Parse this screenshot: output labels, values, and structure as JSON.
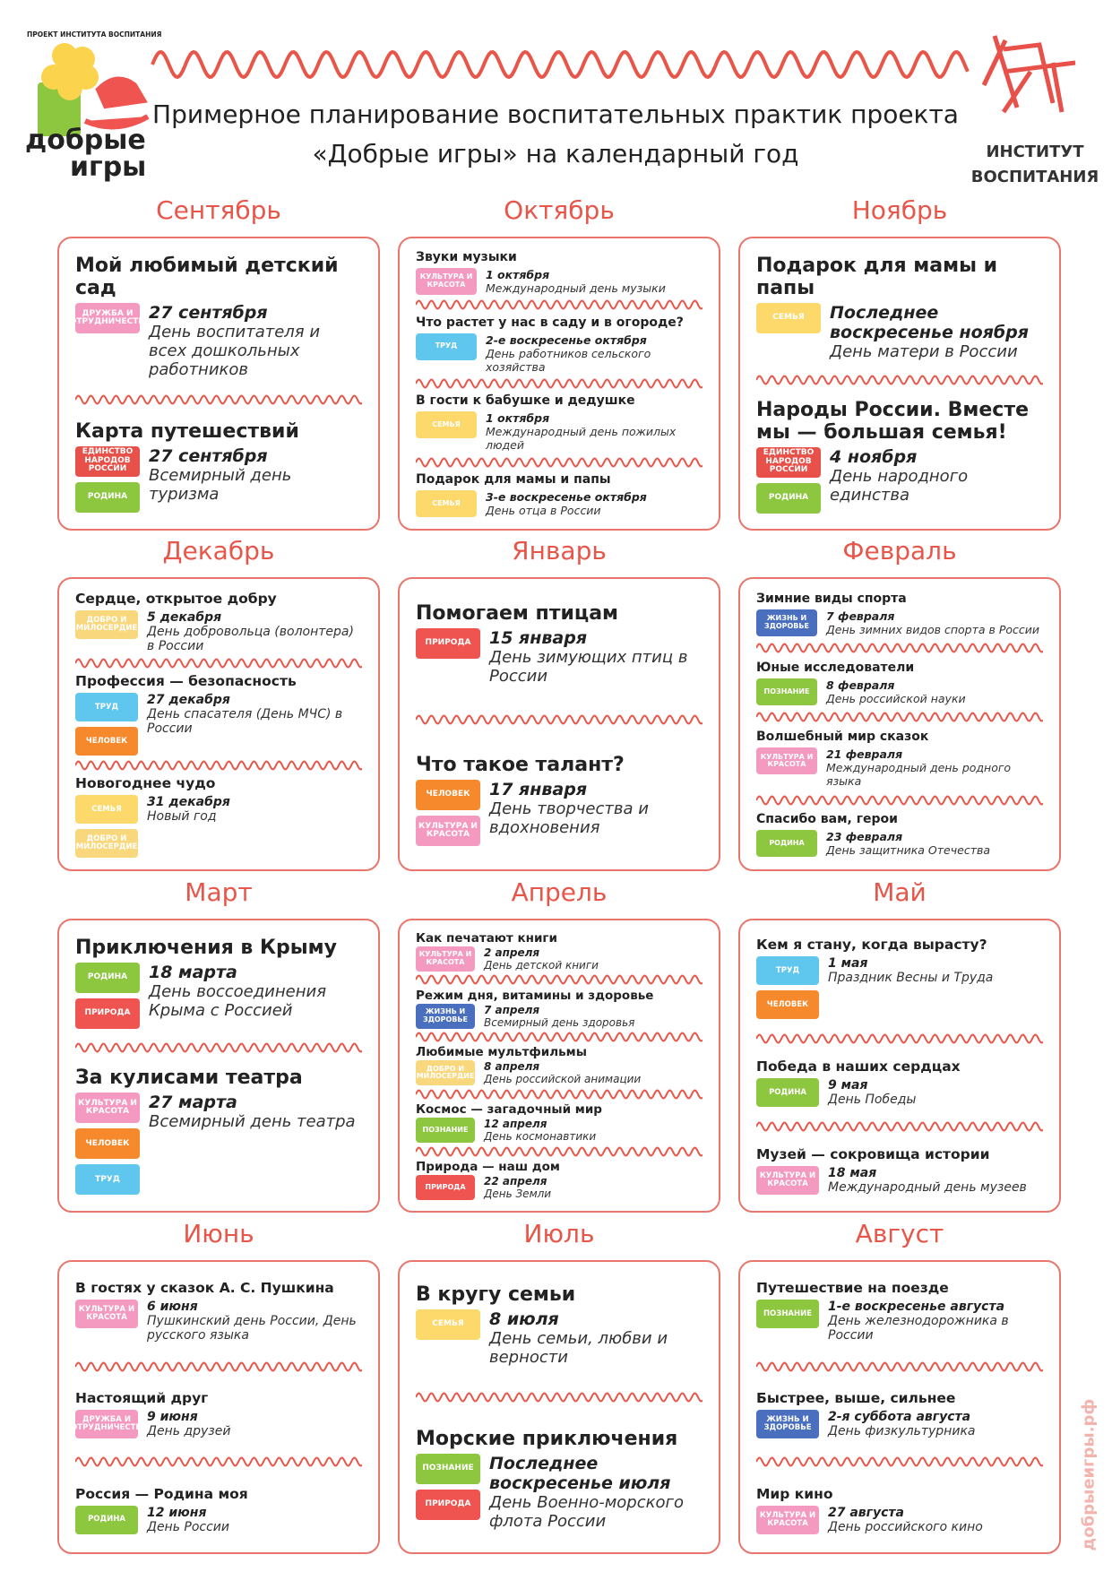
{
  "header": {
    "project": "ПРОЕКТ ИНСТИТУТА ВОСПИТАНИЯ",
    "logo_line1": "добрые",
    "logo_line2": "игры",
    "title_line1": "Примерное планирование воспитательных практик проекта",
    "title_line2": "«Добрые игры» на календарный год",
    "institute_line1": "ИНСТИТУТ",
    "institute_line2": "ВОСПИТАНИЯ"
  },
  "footer": {
    "site": "добрыеигры.рф"
  },
  "months": [
    {
      "name": "Сентябрь",
      "events": [
        {
          "title": "Мой любимый детский сад",
          "tags": [
            {
              "label": "ДРУЖБА И СОТРУДНИЧЕСТВО",
              "color": "#f49ac1"
            }
          ],
          "date": "27 сентября",
          "desc": "День воспитателя и всех дошкольных работников"
        },
        {
          "title": "Карта путешествий",
          "tags": [
            {
              "label": "ЕДИНСТВО НАРОДОВ РОССИИ",
              "color": "#e8504a"
            },
            {
              "label": "РОДИНА",
              "color": "#8dc63f"
            }
          ],
          "date": "27 сентября",
          "desc": "Всемирный день туризма"
        }
      ]
    },
    {
      "name": "Октябрь",
      "events": [
        {
          "title": "Звуки музыки",
          "tags": [
            {
              "label": "КУЛЬТУРА И КРАСОТА",
              "color": "#f49ac1"
            }
          ],
          "date": "1 октября",
          "desc": "Международный день музыки"
        },
        {
          "title": "Что растет у нас в саду и в огороде?",
          "tags": [
            {
              "label": "ТРУД",
              "color": "#5fc6ee"
            }
          ],
          "date": "2-е воскресенье октября",
          "desc": "День работников сельского хозяйства"
        },
        {
          "title": "В гости к бабушке и дедушке",
          "tags": [
            {
              "label": "СЕМЬЯ",
              "color": "#fcd96a"
            }
          ],
          "date": "1 октября",
          "desc": "Международный день пожилых людей"
        },
        {
          "title": "Подарок для мамы и папы",
          "tags": [
            {
              "label": "СЕМЬЯ",
              "color": "#fcd96a"
            }
          ],
          "date": "3-е воскресенье октября",
          "desc": "День отца в России"
        }
      ]
    },
    {
      "name": "Ноябрь",
      "events": [
        {
          "title": "Подарок для мамы и папы",
          "tags": [
            {
              "label": "СЕМЬЯ",
              "color": "#fcd96a"
            }
          ],
          "date": "Последнее воскресенье ноября",
          "desc": "День матери в России"
        },
        {
          "title": "Народы России. Вместе мы — большая семья!",
          "tags": [
            {
              "label": "ЕДИНСТВО НАРОДОВ РОССИИ",
              "color": "#e8504a"
            },
            {
              "label": "РОДИНА",
              "color": "#8dc63f"
            }
          ],
          "date": "4 ноября",
          "desc": "День народного единства"
        }
      ]
    },
    {
      "name": "Декабрь",
      "events": [
        {
          "title": "Сердце, открытое добру",
          "tags": [
            {
              "label": "ДОБРО И МИЛОСЕРДИЕ",
              "color": "#f9d77c"
            }
          ],
          "date": "5 декабря",
          "desc": "День добровольца (волонтера) в России"
        },
        {
          "title": "Профессия — безопасность",
          "tags": [
            {
              "label": "ТРУД",
              "color": "#5fc6ee"
            },
            {
              "label": "ЧЕЛОВЕК",
              "color": "#f7892d"
            }
          ],
          "date": "27 декабря",
          "desc": "День спасателя (День МЧС) в России"
        },
        {
          "title": "Новогоднее чудо",
          "tags": [
            {
              "label": "СЕМЬЯ",
              "color": "#fcd96a"
            },
            {
              "label": "ДОБРО И МИЛОСЕРДИЕ",
              "color": "#f9d77c"
            }
          ],
          "date": "31 декабря",
          "desc": "Новый год"
        }
      ]
    },
    {
      "name": "Январь",
      "events": [
        {
          "title": "Помогаем птицам",
          "tags": [
            {
              "label": "ПРИРОДА",
              "color": "#ef5450"
            }
          ],
          "date": "15 января",
          "desc": "День зимующих птиц в России"
        },
        {
          "title": "Что такое талант?",
          "tags": [
            {
              "label": "ЧЕЛОВЕК",
              "color": "#f7892d"
            },
            {
              "label": "КУЛЬТУРА И КРАСОТА",
              "color": "#f49ac1"
            }
          ],
          "date": "17 января",
          "desc": "День творчества и вдохновения"
        }
      ]
    },
    {
      "name": "Февраль",
      "events": [
        {
          "title": "Зимние виды спорта",
          "tags": [
            {
              "label": "ЖИЗНЬ И ЗДОРОВЬЕ",
              "color": "#4a6fbf"
            }
          ],
          "date": "7 февраля",
          "desc": "День зимних видов спорта в России"
        },
        {
          "title": "Юные исследователи",
          "tags": [
            {
              "label": "ПОЗНАНИЕ",
              "color": "#8dc63f"
            }
          ],
          "date": "8 февраля",
          "desc": "День российской науки"
        },
        {
          "title": "Волшебный мир сказок",
          "tags": [
            {
              "label": "КУЛЬТУРА И КРАСОТА",
              "color": "#f49ac1"
            }
          ],
          "date": "21 февраля",
          "desc": "Международный день родного языка"
        },
        {
          "title": "Спасибо вам, герои",
          "tags": [
            {
              "label": "РОДИНА",
              "color": "#8dc63f"
            }
          ],
          "date": "23 февраля",
          "desc": "День защитника Отечества"
        }
      ]
    },
    {
      "name": "Март",
      "events": [
        {
          "title": "Приключения в Крыму",
          "tags": [
            {
              "label": "РОДИНА",
              "color": "#8dc63f"
            },
            {
              "label": "ПРИРОДА",
              "color": "#ef5450"
            }
          ],
          "date": "18 марта",
          "desc": "День воссоединения Крыма с Россией"
        },
        {
          "title": "За кулисами театра",
          "tags": [
            {
              "label": "КУЛЬТУРА И КРАСОТА",
              "color": "#f49ac1"
            },
            {
              "label": "ЧЕЛОВЕК",
              "color": "#f7892d"
            },
            {
              "label": "ТРУД",
              "color": "#5fc6ee"
            }
          ],
          "date": "27 марта",
          "desc": "Всемирный день театра"
        }
      ]
    },
    {
      "name": "Апрель",
      "events": [
        {
          "title": "Как печатают книги",
          "tags": [
            {
              "label": "КУЛЬТУРА И КРАСОТА",
              "color": "#f49ac1"
            }
          ],
          "date": "2 апреля",
          "desc": "День детской книги"
        },
        {
          "title": "Режим дня, витамины и здоровье",
          "tags": [
            {
              "label": "ЖИЗНЬ И ЗДОРОВЬЕ",
              "color": "#4a6fbf"
            }
          ],
          "date": "7 апреля",
          "desc": "Всемирный день здоровья"
        },
        {
          "title": "Любимые мультфильмы",
          "tags": [
            {
              "label": "ДОБРО И МИЛОСЕРДИЕ",
              "color": "#f9d77c"
            }
          ],
          "date": "8 апреля",
          "desc": "День российской анимации"
        },
        {
          "title": "Космос — загадочный мир",
          "tags": [
            {
              "label": "ПОЗНАНИЕ",
              "color": "#8dc63f"
            }
          ],
          "date": "12 апреля",
          "desc": "День космонавтики"
        },
        {
          "title": "Природа — наш дом",
          "tags": [
            {
              "label": "ПРИРОДА",
              "color": "#ef5450"
            }
          ],
          "date": "22 апреля",
          "desc": "День Земли"
        }
      ]
    },
    {
      "name": "Май",
      "events": [
        {
          "title": "Кем я стану, когда вырасту?",
          "tags": [
            {
              "label": "ТРУД",
              "color": "#5fc6ee"
            },
            {
              "label": "ЧЕЛОВЕК",
              "color": "#f7892d"
            }
          ],
          "date": "1 мая",
          "desc": "Праздник Весны и Труда"
        },
        {
          "title": "Победа в наших сердцах",
          "tags": [
            {
              "label": "РОДИНА",
              "color": "#8dc63f"
            }
          ],
          "date": "9 мая",
          "desc": "День Победы"
        },
        {
          "title": "Музей — сокровища истории",
          "tags": [
            {
              "label": "КУЛЬТУРА И КРАСОТА",
              "color": "#f49ac1"
            }
          ],
          "date": "18 мая",
          "desc": "Международный день музеев"
        }
      ]
    },
    {
      "name": "Июнь",
      "events": [
        {
          "title": "В гостях у сказок А. С. Пушкина",
          "tags": [
            {
              "label": "КУЛЬТУРА И КРАСОТА",
              "color": "#f49ac1"
            }
          ],
          "date": "6 июня",
          "desc": "Пушкинский день России, День русского языка"
        },
        {
          "title": "Настоящий друг",
          "tags": [
            {
              "label": "ДРУЖБА И СОТРУДНИЧЕСТВО",
              "color": "#f49ac1"
            }
          ],
          "date": "9 июня",
          "desc": "День друзей"
        },
        {
          "title": "Россия — Родина моя",
          "tags": [
            {
              "label": "РОДИНА",
              "color": "#8dc63f"
            }
          ],
          "date": "12 июня",
          "desc": "День России"
        }
      ]
    },
    {
      "name": "Июль",
      "events": [
        {
          "title": "В кругу семьи",
          "tags": [
            {
              "label": "СЕМЬЯ",
              "color": "#fcd96a"
            }
          ],
          "date": "8 июля",
          "desc": "День семьи, любви и верности"
        },
        {
          "title": "Морские приключения",
          "tags": [
            {
              "label": "ПОЗНАНИЕ",
              "color": "#8dc63f"
            },
            {
              "label": "ПРИРОДА",
              "color": "#ef5450"
            }
          ],
          "date": "Последнее воскресенье июля",
          "desc": "День Военно-морского флота России"
        }
      ]
    },
    {
      "name": "Август",
      "events": [
        {
          "title": "Путешествие на поезде",
          "tags": [
            {
              "label": "ПОЗНАНИЕ",
              "color": "#8dc63f"
            }
          ],
          "date": "1-е воскресенье августа",
          "desc": "День железнодорожника в России"
        },
        {
          "title": "Быстрее, выше, сильнее",
          "tags": [
            {
              "label": "ЖИЗНЬ И ЗДОРОВЬЕ",
              "color": "#4a6fbf"
            }
          ],
          "date": "2-я суббота августа",
          "desc": "День физкультурника"
        },
        {
          "title": "Мир кино",
          "tags": [
            {
              "label": "КУЛЬТУРА И КРАСОТА",
              "color": "#f49ac1"
            }
          ],
          "date": "27 августа",
          "desc": "День российского кино"
        }
      ]
    }
  ]
}
